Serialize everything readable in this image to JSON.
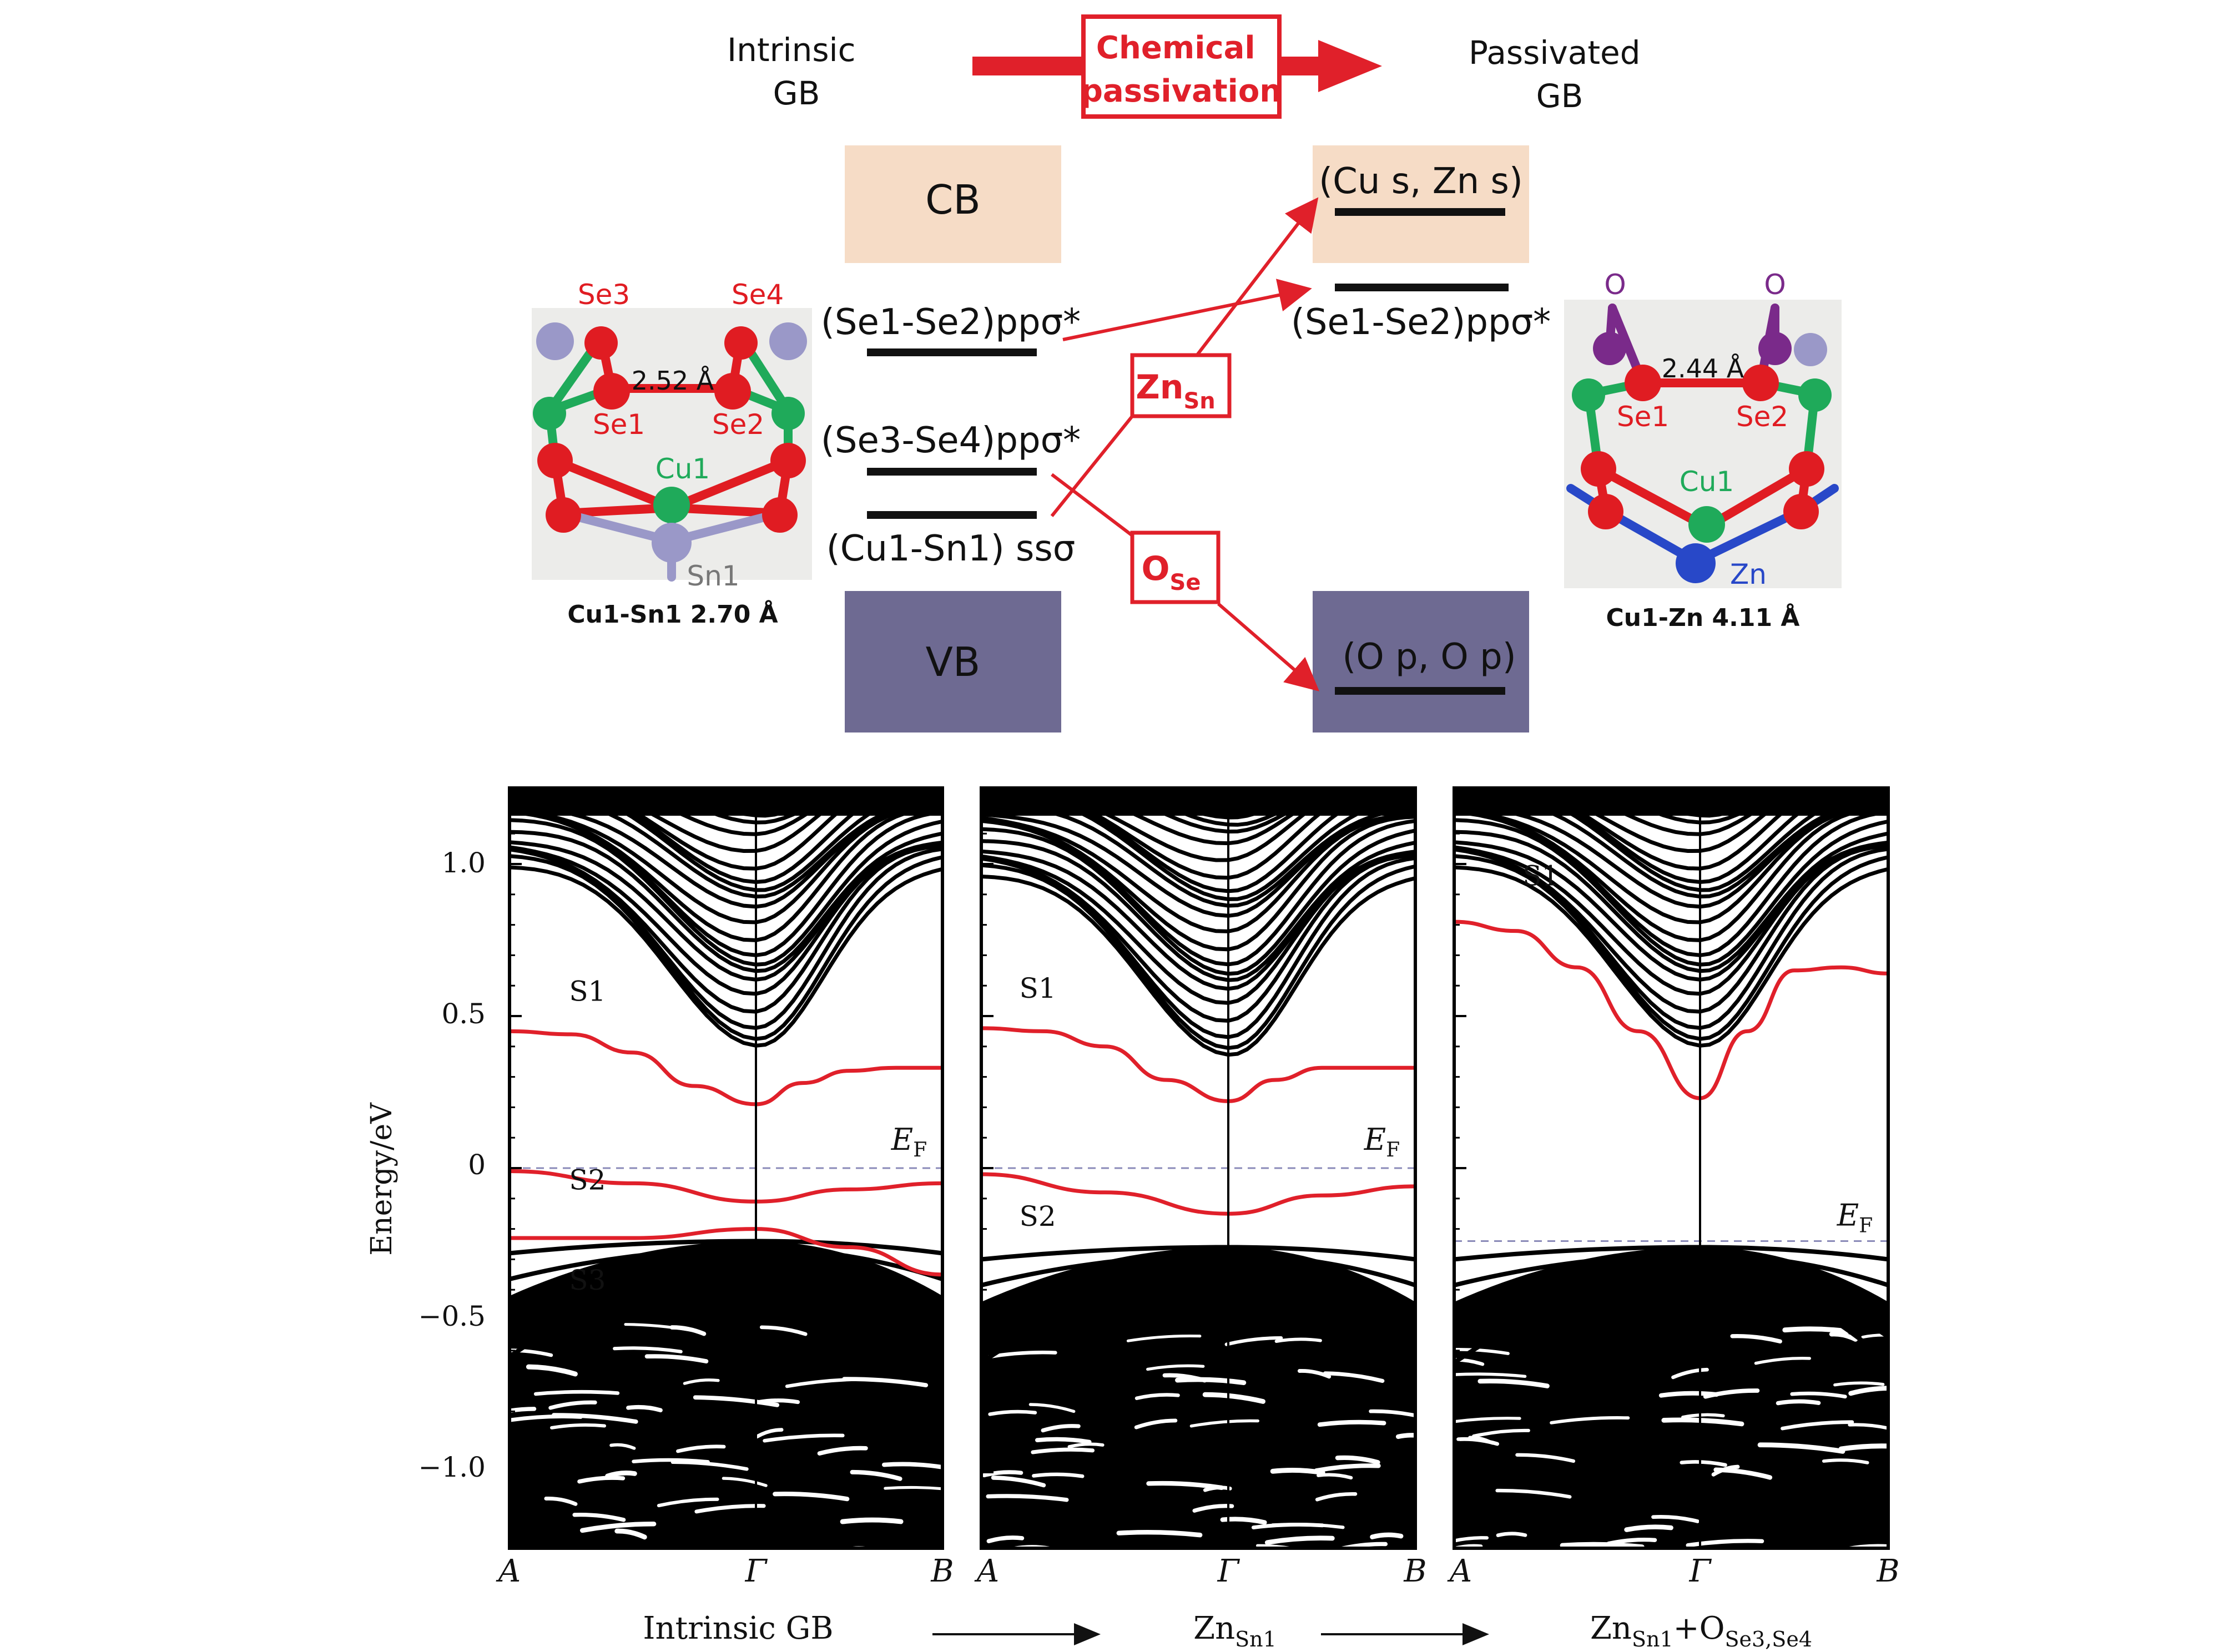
{
  "top": {
    "intrinsic_label": [
      "Intrinsic",
      "GB"
    ],
    "passivated_label": [
      "Passivated",
      "GB"
    ],
    "arrow_label": [
      "Chemical",
      "passivation"
    ],
    "cb_label": "CB",
    "vb_label": "VB",
    "left_levels": [
      "(Se1-Se2)ppσ*",
      "(Se3-Se4)ppσ*",
      "(Cu1-Sn1) ssσ"
    ],
    "right_levels": [
      "(Cu s, Zn s)",
      "(Se1-Se2)ppσ*",
      "(O p, O p)"
    ],
    "zn_box": {
      "main": "Zn",
      "sub": "Sn"
    },
    "o_box": {
      "main": "O",
      "sub": "Se"
    },
    "left_structure": {
      "atoms": [
        "Se3",
        "Se4",
        "Se1",
        "Se2",
        "Cu1",
        "Sn1"
      ],
      "bond": "2.52 Å",
      "caption": "Cu1-Sn1 2.70 Å"
    },
    "right_structure": {
      "atoms": [
        "O",
        "O",
        "Se1",
        "Se2",
        "Cu1",
        "Zn"
      ],
      "bond": "2.44 Å",
      "caption": "Cu1-Zn 4.11 Å"
    },
    "colors": {
      "red": "#e0202a",
      "cb": "#f6dcc6",
      "vb": "#6e6a92",
      "se": "#e01c22",
      "cu": "#1faa5a",
      "sn": "#9a98c8",
      "zn": "#2848c8",
      "o": "#7a2a8a"
    }
  },
  "bottom": {
    "ylabel": "Energy/eV",
    "yticks": [
      "1.0",
      "0.5",
      "0",
      "−0.5",
      "−1.0"
    ],
    "ytick_values": [
      1.0,
      0.5,
      0,
      -0.5,
      -1.0
    ],
    "ylim": [
      -1.25,
      1.25
    ],
    "kpoints": [
      "A",
      "Γ",
      "B"
    ],
    "fermi_label": {
      "main": "E",
      "sub": "F"
    },
    "flow": [
      {
        "main": "Intrinsic GB",
        "sub": ""
      },
      {
        "main": "Zn",
        "sub": "Sn1"
      },
      {
        "main": "Zn",
        "sub": "Sn1",
        "mid": "+O",
        "sub2": "Se3,Se4"
      }
    ]
  },
  "chart_data": [
    {
      "type": "line",
      "panel": "Intrinsic GB",
      "xticklabels": [
        "A",
        "Γ",
        "B"
      ],
      "ylabel": "Energy/eV",
      "ylim": [
        -1.25,
        1.25
      ],
      "fermi": 0,
      "series": [
        {
          "name": "S1",
          "x": [
            0,
            0.25,
            0.5,
            0.75,
            1.0,
            1.25,
            1.5,
            1.75,
            2.0
          ],
          "y": [
            0.45,
            0.44,
            0.38,
            0.27,
            0.21,
            0.28,
            0.32,
            0.33,
            0.33
          ]
        },
        {
          "name": "S2",
          "x": [
            0,
            0.5,
            1.0,
            1.5,
            2.0
          ],
          "y": [
            -0.01,
            -0.05,
            -0.11,
            -0.07,
            -0.05
          ]
        },
        {
          "name": "S3",
          "x": [
            0,
            0.5,
            1.0,
            1.5,
            2.0
          ],
          "y": [
            -0.23,
            -0.23,
            -0.2,
            -0.26,
            -0.35
          ]
        }
      ]
    },
    {
      "type": "line",
      "panel": "Zn_Sn1",
      "xticklabels": [
        "A",
        "Γ",
        "B"
      ],
      "ylim": [
        -1.25,
        1.25
      ],
      "fermi": 0,
      "series": [
        {
          "name": "S1",
          "x": [
            0,
            0.25,
            0.5,
            0.75,
            1.0,
            1.25,
            1.5,
            1.75,
            2.0
          ],
          "y": [
            0.46,
            0.45,
            0.4,
            0.29,
            0.22,
            0.29,
            0.33,
            0.33,
            0.33
          ]
        },
        {
          "name": "S2",
          "x": [
            0,
            0.5,
            1.0,
            1.5,
            2.0
          ],
          "y": [
            -0.02,
            -0.08,
            -0.15,
            -0.09,
            -0.06
          ]
        }
      ]
    },
    {
      "type": "line",
      "panel": "Zn_Sn1+O_Se3,Se4",
      "xticklabels": [
        "A",
        "Γ",
        "B"
      ],
      "ylim": [
        -1.25,
        1.25
      ],
      "fermi": -0.24,
      "series": [
        {
          "name": "S1",
          "x": [
            0,
            0.25,
            0.5,
            0.75,
            1.0,
            1.25,
            1.5,
            1.75,
            2.0
          ],
          "y": [
            0.81,
            0.78,
            0.66,
            0.45,
            0.23,
            0.45,
            0.65,
            0.66,
            0.64
          ]
        }
      ]
    }
  ]
}
